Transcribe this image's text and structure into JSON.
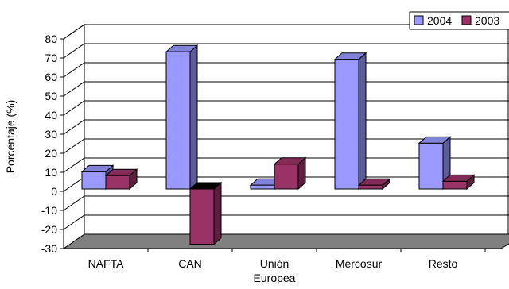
{
  "chart_data": {
    "type": "bar",
    "style": "3d-clustered",
    "ylabel": "Porcentaje (%)",
    "xlabel": "",
    "ylim": [
      -30,
      80
    ],
    "yticks": [
      "80",
      "70",
      "60",
      "50",
      "40",
      "30",
      "20",
      "10",
      "0",
      "-10",
      "-20",
      "-30"
    ],
    "categories": [
      "NAFTA",
      "CAN",
      "Unión Europea",
      "Mercosur",
      "Resto"
    ],
    "series": [
      {
        "name": "2004",
        "color": "#9999ff",
        "values": [
          9,
          72,
          2,
          68,
          24
        ]
      },
      {
        "name": "2003",
        "color": "#993366",
        "values": [
          7,
          -29,
          13,
          2,
          4
        ]
      }
    ],
    "legend_position": "top-right",
    "grid": true
  }
}
